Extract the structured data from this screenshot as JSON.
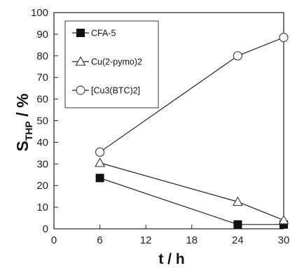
{
  "chart_data": {
    "type": "line",
    "x_title": "t / h",
    "y_title": {
      "main": "S",
      "subscript": "THP",
      "suffix": " / %"
    },
    "xlim": [
      0,
      30
    ],
    "ylim": [
      0,
      100
    ],
    "x_ticks": [
      0,
      6,
      12,
      18,
      24,
      30
    ],
    "y_ticks": [
      0,
      10,
      20,
      30,
      40,
      50,
      60,
      70,
      80,
      90,
      100
    ],
    "grid": false,
    "legend_position": "top-left",
    "series": [
      {
        "name": "CFA-5",
        "marker": "filled-square",
        "x": [
          6,
          24,
          30
        ],
        "y": [
          23.5,
          2,
          2
        ]
      },
      {
        "name": "Cu(2-pymo)2",
        "marker": "open-triangle",
        "x": [
          6,
          24,
          30
        ],
        "y": [
          30.5,
          12.5,
          4
        ]
      },
      {
        "name": "[Cu3(BTC)2]",
        "marker": "open-circle",
        "x": [
          6,
          24,
          30
        ],
        "y": [
          35.5,
          80,
          88.5
        ]
      }
    ]
  }
}
